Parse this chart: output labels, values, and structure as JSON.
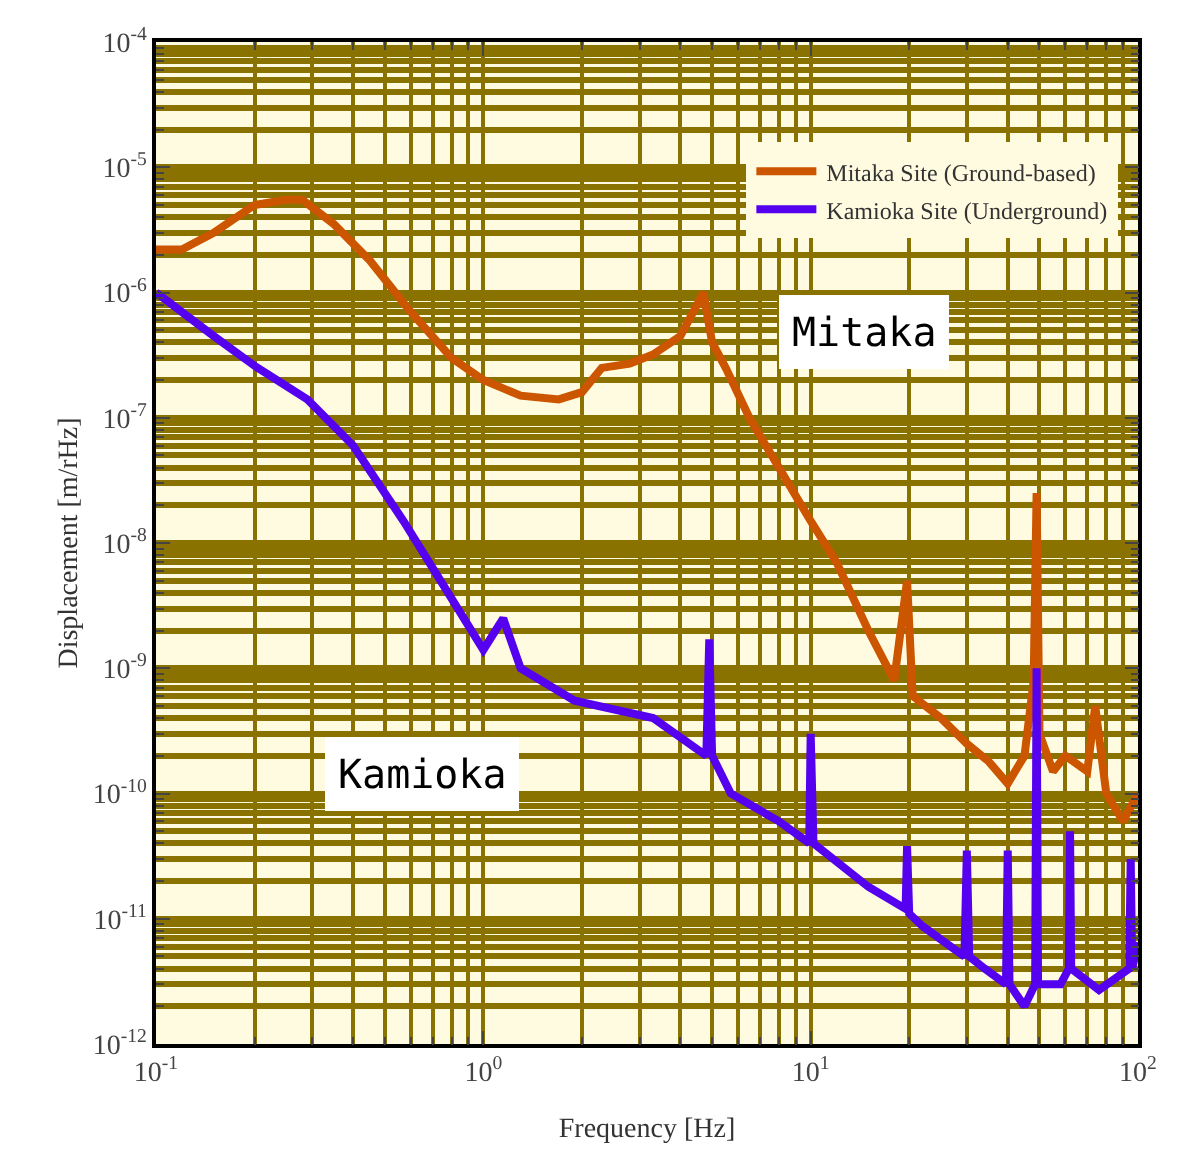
{
  "chart_data": {
    "type": "line",
    "xlabel": "Frequency [Hz]",
    "ylabel": "Displacement [m/rHz]",
    "log": "xy",
    "grid": true,
    "legend": "top right",
    "xlim": [
      0.1,
      100
    ],
    "ylim": [
      1e-12,
      0.0001
    ],
    "xticks": [
      {
        "value": 0.1,
        "label": "10$^{-1}$"
      },
      {
        "value": 1,
        "label": "10$^{0}$"
      },
      {
        "value": 10,
        "label": "10$^{1}$"
      },
      {
        "value": 100,
        "label": "10$^{2}$"
      }
    ],
    "yticks": [
      {
        "value": 1e-12,
        "label": "10$^{-12}$"
      },
      {
        "value": 1e-11,
        "label": "10$^{-11}$"
      },
      {
        "value": 1e-10,
        "label": "10$^{-10}$"
      },
      {
        "value": 1e-09,
        "label": "10$^{-9}$"
      },
      {
        "value": 1e-08,
        "label": "10$^{-8}$"
      },
      {
        "value": 1e-07,
        "label": "10$^{-7}$"
      },
      {
        "value": 1e-06,
        "label": "10$^{-6}$"
      },
      {
        "value": 1e-05,
        "label": "10$^{-5}$"
      },
      {
        "value": 0.0001,
        "label": "10$^{-4}$"
      }
    ],
    "series": [
      {
        "name": "Mitaka Site (Ground-based)",
        "color": "#cc5500",
        "x": [
          0.1,
          0.12,
          0.15,
          0.2,
          0.25,
          0.28,
          0.35,
          0.45,
          0.6,
          0.8,
          1.0,
          1.3,
          1.7,
          2.0,
          2.3,
          2.8,
          3.3,
          4.0,
          4.5,
          4.7,
          5.0,
          5.5,
          6.5,
          8,
          10,
          12,
          15,
          18,
          19.7,
          20.5,
          25,
          30,
          35,
          40,
          45,
          48,
          49,
          50,
          55,
          60,
          70,
          74,
          80,
          90,
          100
        ],
        "values": [
          2.2e-06,
          2.2e-06,
          3e-06,
          5e-06,
          5.5e-06,
          5.5e-06,
          3.5e-06,
          1.8e-06,
          7e-07,
          3e-07,
          2e-07,
          1.5e-07,
          1.4e-07,
          1.6e-07,
          2.5e-07,
          2.7e-07,
          3.2e-07,
          4.5e-07,
          8e-07,
          1e-06,
          4e-07,
          2.5e-07,
          1e-07,
          4e-08,
          1.5e-08,
          7e-09,
          2e-09,
          8e-10,
          5e-09,
          6e-10,
          4e-10,
          2.5e-10,
          1.8e-10,
          1.2e-10,
          2e-10,
          8e-10,
          2.5e-08,
          3e-10,
          1.5e-10,
          2e-10,
          1.5e-10,
          5e-10,
          1e-10,
          6e-11,
          1e-10
        ]
      },
      {
        "name": "Kamioka Site (Underground)",
        "color": "#5500ee",
        "x": [
          0.1,
          0.15,
          0.2,
          0.29,
          0.4,
          0.57,
          0.74,
          1.0,
          1.15,
          1.3,
          1.9,
          3.3,
          4.8,
          4.9,
          5.0,
          5.7,
          8,
          9.9,
          10,
          10.2,
          15,
          19.5,
          19.7,
          20,
          22,
          29.5,
          30,
          30.5,
          34,
          39.5,
          40,
          40.5,
          45,
          48.5,
          49,
          49.5,
          58,
          61.5,
          62,
          62.5,
          76,
          94,
          95,
          96,
          100
        ],
        "values": [
          1e-06,
          4.5e-07,
          2.6e-07,
          1.4e-07,
          6e-08,
          1.5e-08,
          5e-09,
          1.4e-09,
          2.5e-09,
          1e-09,
          5.5e-10,
          4e-10,
          2e-10,
          1.7e-09,
          2e-10,
          1e-10,
          6e-11,
          4e-11,
          3e-10,
          4e-11,
          1.8e-11,
          1.2e-11,
          3.8e-11,
          1.1e-11,
          8.7e-12,
          5e-12,
          3.5e-11,
          5e-12,
          4e-12,
          3e-12,
          3.5e-11,
          3e-12,
          2e-12,
          3e-12,
          1e-09,
          3e-12,
          3e-12,
          4e-12,
          5e-11,
          4e-12,
          2.7e-12,
          4e-12,
          3e-11,
          4e-12,
          6.5e-12
        ]
      }
    ],
    "annotations": [
      "Mitaka",
      "Kamioka"
    ]
  }
}
